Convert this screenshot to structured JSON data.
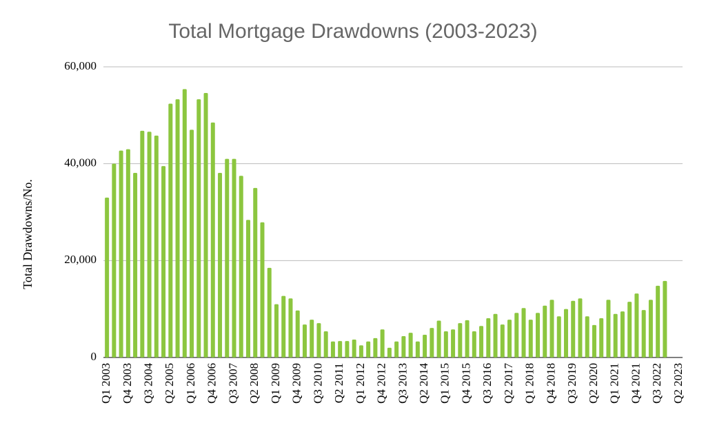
{
  "chart_data": {
    "type": "bar",
    "title": "Total Mortgage Drawdowns (2003-2023)",
    "y_label": "Total Drawdowns/No.",
    "categories": [
      "Q1 2003",
      null,
      null,
      "Q4 2003",
      null,
      null,
      "Q3 2004",
      null,
      null,
      "Q2 2005",
      null,
      null,
      "Q1 2006",
      null,
      null,
      "Q4 2006",
      null,
      null,
      "Q3 2007",
      null,
      null,
      "Q2 2008",
      null,
      null,
      "Q1 2009",
      null,
      null,
      "Q4 2009",
      null,
      null,
      "Q3 2010",
      null,
      null,
      "Q2 2011",
      null,
      null,
      "Q1 2012",
      null,
      null,
      "Q4 2012",
      null,
      null,
      "Q3 2013",
      null,
      null,
      "Q2 2014",
      null,
      null,
      "Q1 2015",
      null,
      null,
      "Q4 2015",
      null,
      null,
      "Q3 2016",
      null,
      null,
      "Q2 2017",
      null,
      null,
      "Q1 2018",
      null,
      null,
      "Q4 2018",
      null,
      null,
      "Q3 2019",
      null,
      null,
      "Q2 2020",
      null,
      null,
      "Q1 2021",
      null,
      null,
      "Q4 2021",
      null,
      null,
      "Q3 2022",
      null,
      null,
      "Q2 2023"
    ],
    "values": [
      33000,
      40000,
      42700,
      43000,
      38100,
      46800,
      46600,
      45800,
      39500,
      52400,
      53300,
      55400,
      47000,
      53300,
      54600,
      48500,
      38100,
      41000,
      41000,
      37500,
      28400,
      35000,
      27900,
      18500,
      11000,
      12700,
      12200,
      9700,
      6800,
      7800,
      7100,
      5400,
      3300,
      3400,
      3400,
      3700,
      2500,
      3300,
      4000,
      5800,
      2000,
      3300,
      4400,
      5100,
      3300,
      4700,
      6100,
      7600,
      5400,
      5800,
      7100,
      7700,
      5400,
      6500,
      8100,
      9000,
      6800,
      7800,
      9200,
      10200,
      7800,
      9200,
      10700,
      11900,
      8500,
      10000,
      11700,
      12200,
      8500,
      6700,
      8100,
      11900,
      9000,
      9500,
      11500,
      13200,
      9800,
      11900,
      14800,
      15800,
      null,
      null
    ],
    "color": "#8cc63f",
    "ylim": [
      0,
      60000
    ],
    "yticks": [
      0,
      {
        "value": 20000,
        "label": "20,000"
      },
      {
        "value": 40000,
        "label": "40,000"
      },
      {
        "value": 60000,
        "label": "60,000"
      }
    ],
    "grid": true
  }
}
